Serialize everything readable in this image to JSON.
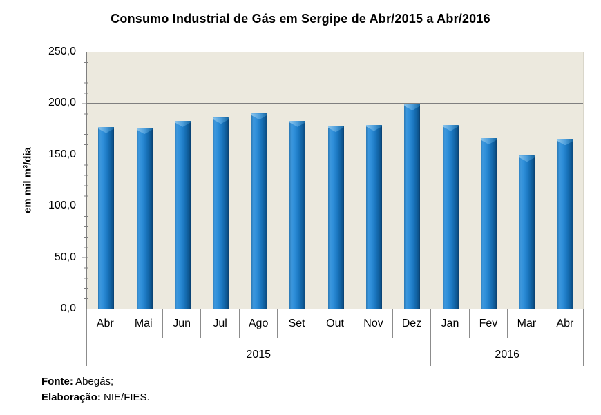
{
  "title": "Consumo Industrial de Gás em Sergipe de Abr/2015 a Abr/2016",
  "footer": {
    "source_label": "Fonte:",
    "source_value": "Abegás;",
    "elaboration_label": "Elaboração:",
    "elaboration_value": "NIE/FIES."
  },
  "colors": {
    "bar_main": "#1e7dc8",
    "bar_dark": "#0c4e84",
    "bar_highlight": "#4e9fdc",
    "plot_background": "#ece9de",
    "gridline": "#7f7f7f",
    "axis_line": "#595959",
    "text": "#000000"
  },
  "chart_data": {
    "type": "bar",
    "categories": [
      "Abr",
      "Mai",
      "Jun",
      "Jul",
      "Ago",
      "Set",
      "Out",
      "Nov",
      "Dez",
      "Jan",
      "Fev",
      "Mar",
      "Abr"
    ],
    "values": [
      177,
      176,
      183,
      186,
      190,
      183,
      178,
      179,
      199,
      179,
      166,
      149,
      165
    ],
    "groups": [
      {
        "label": "2015",
        "span": 9
      },
      {
        "label": "2016",
        "span": 4
      }
    ],
    "title": "Consumo Industrial de Gás em Sergipe de Abr/2015 a Abr/2016",
    "xlabel": "",
    "ylabel": "em mil m³/dia",
    "ylim": [
      0,
      250
    ],
    "ytick_step": 50,
    "ytick_labels": [
      "250,0",
      "200,0",
      "150,0",
      "100,0",
      "50,0",
      "0,0"
    ],
    "minor_tick_step": 10,
    "grid": true,
    "legend": false
  }
}
